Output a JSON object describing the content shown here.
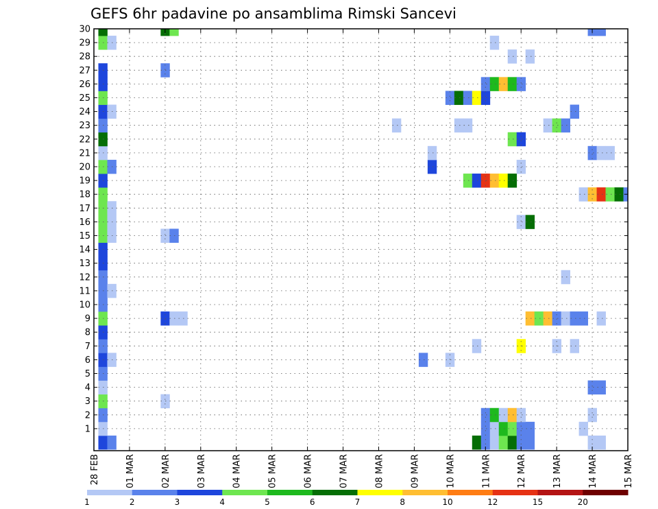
{
  "chart_data": {
    "type": "heatmap",
    "title": "GEFS 6hr padavine po ansamblima Rimski Sancevi",
    "xlabel": "",
    "ylabel": "",
    "x_tick_labels": [
      "28 FEB",
      "01 MAR",
      "02 MAR",
      "03 MAR",
      "04 MAR",
      "05 MAR",
      "06 MAR",
      "07 MAR",
      "08 MAR",
      "09 MAR",
      "10 MAR",
      "11 MAR",
      "12 MAR",
      "13 MAR",
      "14 MAR",
      "15 MAR"
    ],
    "y_tick_labels": [
      "1",
      "2",
      "3",
      "4",
      "5",
      "6",
      "7",
      "8",
      "9",
      "10",
      "11",
      "12",
      "13",
      "14",
      "15",
      "16",
      "17",
      "18",
      "19",
      "20",
      "21",
      "22",
      "23",
      "24",
      "25",
      "26",
      "27",
      "28",
      "29",
      "30"
    ],
    "xlim_days": [
      0,
      15
    ],
    "ylim": [
      0,
      30
    ],
    "grid": true,
    "step_hours": 6,
    "colorbar": {
      "position": "bottom",
      "ticks": [
        "1",
        "2",
        "3",
        "4",
        "5",
        "6",
        "7",
        "8",
        "10",
        "12",
        "15",
        "20"
      ],
      "colors": [
        "#b4c8f5",
        "#5a82eb",
        "#1e46dc",
        "#6ee650",
        "#1eb91e",
        "#056e05",
        "#ffff00",
        "#ffbe32",
        "#ff7d14",
        "#e63214",
        "#b41414",
        "#6e0000"
      ]
    },
    "cells": [
      {
        "t": 0.25,
        "m": 0,
        "v": 3
      },
      {
        "t": 0.5,
        "m": 0,
        "v": 2
      },
      {
        "t": 10.75,
        "m": 0,
        "v": 6
      },
      {
        "t": 11,
        "m": 0,
        "v": 2
      },
      {
        "t": 11.25,
        "m": 0,
        "v": 1
      },
      {
        "t": 11.5,
        "m": 0,
        "v": 4
      },
      {
        "t": 11.75,
        "m": 0,
        "v": 6
      },
      {
        "t": 12,
        "m": 0,
        "v": 2
      },
      {
        "t": 12.25,
        "m": 0,
        "v": 2
      },
      {
        "t": 14,
        "m": 0,
        "v": 1
      },
      {
        "t": 14.25,
        "m": 0,
        "v": 1
      },
      {
        "t": 0.25,
        "m": 1,
        "v": 1
      },
      {
        "t": 11,
        "m": 1,
        "v": 2
      },
      {
        "t": 11.25,
        "m": 1,
        "v": 1
      },
      {
        "t": 11.5,
        "m": 1,
        "v": 5
      },
      {
        "t": 11.75,
        "m": 1,
        "v": 4
      },
      {
        "t": 12,
        "m": 1,
        "v": 2
      },
      {
        "t": 12.25,
        "m": 1,
        "v": 2
      },
      {
        "t": 13.75,
        "m": 1,
        "v": 1
      },
      {
        "t": 0.25,
        "m": 2,
        "v": 2
      },
      {
        "t": 11,
        "m": 2,
        "v": 2
      },
      {
        "t": 11.25,
        "m": 2,
        "v": 5
      },
      {
        "t": 11.5,
        "m": 2,
        "v": 1
      },
      {
        "t": 11.75,
        "m": 2,
        "v": 8
      },
      {
        "t": 12,
        "m": 2,
        "v": 1
      },
      {
        "t": 14,
        "m": 2,
        "v": 1
      },
      {
        "t": 0.25,
        "m": 3,
        "v": 4
      },
      {
        "t": 2,
        "m": 3,
        "v": 1
      },
      {
        "t": 0.25,
        "m": 4,
        "v": 1
      },
      {
        "t": 14,
        "m": 4,
        "v": 2
      },
      {
        "t": 14.25,
        "m": 4,
        "v": 2
      },
      {
        "t": 0.25,
        "m": 5,
        "v": 2
      },
      {
        "t": 0.25,
        "m": 6,
        "v": 3
      },
      {
        "t": 0.5,
        "m": 6,
        "v": 1
      },
      {
        "t": 9.25,
        "m": 6,
        "v": 2
      },
      {
        "t": 10,
        "m": 6,
        "v": 1
      },
      {
        "t": 0.25,
        "m": 7,
        "v": 2
      },
      {
        "t": 10.75,
        "m": 7,
        "v": 1
      },
      {
        "t": 12,
        "m": 7,
        "v": 7
      },
      {
        "t": 13,
        "m": 7,
        "v": 1
      },
      {
        "t": 13.5,
        "m": 7,
        "v": 1
      },
      {
        "t": 0.25,
        "m": 8,
        "v": 3
      },
      {
        "t": 0.25,
        "m": 9,
        "v": 4
      },
      {
        "t": 2,
        "m": 9,
        "v": 3
      },
      {
        "t": 2.25,
        "m": 9,
        "v": 1
      },
      {
        "t": 2.5,
        "m": 9,
        "v": 1
      },
      {
        "t": 12.25,
        "m": 9,
        "v": 8
      },
      {
        "t": 12.5,
        "m": 9,
        "v": 4
      },
      {
        "t": 12.75,
        "m": 9,
        "v": 8
      },
      {
        "t": 13,
        "m": 9,
        "v": 2
      },
      {
        "t": 13.25,
        "m": 9,
        "v": 1
      },
      {
        "t": 13.5,
        "m": 9,
        "v": 2
      },
      {
        "t": 13.75,
        "m": 9,
        "v": 2
      },
      {
        "t": 14.25,
        "m": 9,
        "v": 1
      },
      {
        "t": 0.25,
        "m": 10,
        "v": 2
      },
      {
        "t": 0.25,
        "m": 11,
        "v": 2
      },
      {
        "t": 0.5,
        "m": 11,
        "v": 1
      },
      {
        "t": 0.25,
        "m": 12,
        "v": 2
      },
      {
        "t": 13.25,
        "m": 12,
        "v": 1
      },
      {
        "t": 0.25,
        "m": 13,
        "v": 3
      },
      {
        "t": 0.25,
        "m": 14,
        "v": 3
      },
      {
        "t": 0.25,
        "m": 15,
        "v": 4
      },
      {
        "t": 0.5,
        "m": 15,
        "v": 1
      },
      {
        "t": 2,
        "m": 15,
        "v": 1
      },
      {
        "t": 2.25,
        "m": 15,
        "v": 2
      },
      {
        "t": 0.25,
        "m": 16,
        "v": 4
      },
      {
        "t": 0.5,
        "m": 16,
        "v": 1
      },
      {
        "t": 12,
        "m": 16,
        "v": 1
      },
      {
        "t": 12.25,
        "m": 16,
        "v": 6
      },
      {
        "t": 0.25,
        "m": 17,
        "v": 4
      },
      {
        "t": 0.5,
        "m": 17,
        "v": 1
      },
      {
        "t": 0.25,
        "m": 18,
        "v": 4
      },
      {
        "t": 13.75,
        "m": 18,
        "v": 1
      },
      {
        "t": 14,
        "m": 18,
        "v": 8
      },
      {
        "t": 14.25,
        "m": 18,
        "v": 10
      },
      {
        "t": 14.5,
        "m": 18,
        "v": 4
      },
      {
        "t": 14.75,
        "m": 18,
        "v": 6
      },
      {
        "t": 15,
        "m": 18,
        "v": 2
      },
      {
        "t": 0.25,
        "m": 19,
        "v": 3
      },
      {
        "t": 10.5,
        "m": 19,
        "v": 4
      },
      {
        "t": 10.75,
        "m": 19,
        "v": 3
      },
      {
        "t": 11,
        "m": 19,
        "v": 10
      },
      {
        "t": 11.25,
        "m": 19,
        "v": 8
      },
      {
        "t": 11.5,
        "m": 19,
        "v": 7
      },
      {
        "t": 11.75,
        "m": 19,
        "v": 6
      },
      {
        "t": 0.25,
        "m": 20,
        "v": 4
      },
      {
        "t": 0.5,
        "m": 20,
        "v": 2
      },
      {
        "t": 9.5,
        "m": 20,
        "v": 3
      },
      {
        "t": 12,
        "m": 20,
        "v": 1
      },
      {
        "t": 0.25,
        "m": 21,
        "v": 1
      },
      {
        "t": 9.5,
        "m": 21,
        "v": 1
      },
      {
        "t": 14,
        "m": 21,
        "v": 2
      },
      {
        "t": 14.25,
        "m": 21,
        "v": 1
      },
      {
        "t": 14.5,
        "m": 21,
        "v": 1
      },
      {
        "t": 0.25,
        "m": 22,
        "v": 6
      },
      {
        "t": 11.75,
        "m": 22,
        "v": 4
      },
      {
        "t": 12,
        "m": 22,
        "v": 3
      },
      {
        "t": 0.25,
        "m": 23,
        "v": 2
      },
      {
        "t": 8.5,
        "m": 23,
        "v": 1
      },
      {
        "t": 10.25,
        "m": 23,
        "v": 1
      },
      {
        "t": 10.5,
        "m": 23,
        "v": 1
      },
      {
        "t": 12.75,
        "m": 23,
        "v": 1
      },
      {
        "t": 13,
        "m": 23,
        "v": 4
      },
      {
        "t": 13.25,
        "m": 23,
        "v": 2
      },
      {
        "t": 0.25,
        "m": 24,
        "v": 3
      },
      {
        "t": 0.5,
        "m": 24,
        "v": 1
      },
      {
        "t": 13.5,
        "m": 24,
        "v": 2
      },
      {
        "t": 0.25,
        "m": 25,
        "v": 4
      },
      {
        "t": 10,
        "m": 25,
        "v": 2
      },
      {
        "t": 10.25,
        "m": 25,
        "v": 6
      },
      {
        "t": 10.5,
        "m": 25,
        "v": 2
      },
      {
        "t": 10.75,
        "m": 25,
        "v": 7
      },
      {
        "t": 11,
        "m": 25,
        "v": 3
      },
      {
        "t": 0.25,
        "m": 26,
        "v": 3
      },
      {
        "t": 11,
        "m": 26,
        "v": 2
      },
      {
        "t": 11.25,
        "m": 26,
        "v": 5
      },
      {
        "t": 11.5,
        "m": 26,
        "v": 8
      },
      {
        "t": 11.75,
        "m": 26,
        "v": 5
      },
      {
        "t": 12,
        "m": 26,
        "v": 2
      },
      {
        "t": 0.25,
        "m": 27,
        "v": 3
      },
      {
        "t": 2,
        "m": 27,
        "v": 2
      },
      {
        "t": 11.75,
        "m": 28,
        "v": 1
      },
      {
        "t": 12.25,
        "m": 28,
        "v": 1
      },
      {
        "t": 0.25,
        "m": 29,
        "v": 4
      },
      {
        "t": 0.5,
        "m": 29,
        "v": 1
      },
      {
        "t": 11.25,
        "m": 29,
        "v": 1
      },
      {
        "t": 0.25,
        "m": 30,
        "v": 6
      },
      {
        "t": 2,
        "m": 30,
        "v": 6
      },
      {
        "t": 2.25,
        "m": 30,
        "v": 4
      },
      {
        "t": 14,
        "m": 30,
        "v": 2
      },
      {
        "t": 14.25,
        "m": 30,
        "v": 2
      }
    ]
  }
}
